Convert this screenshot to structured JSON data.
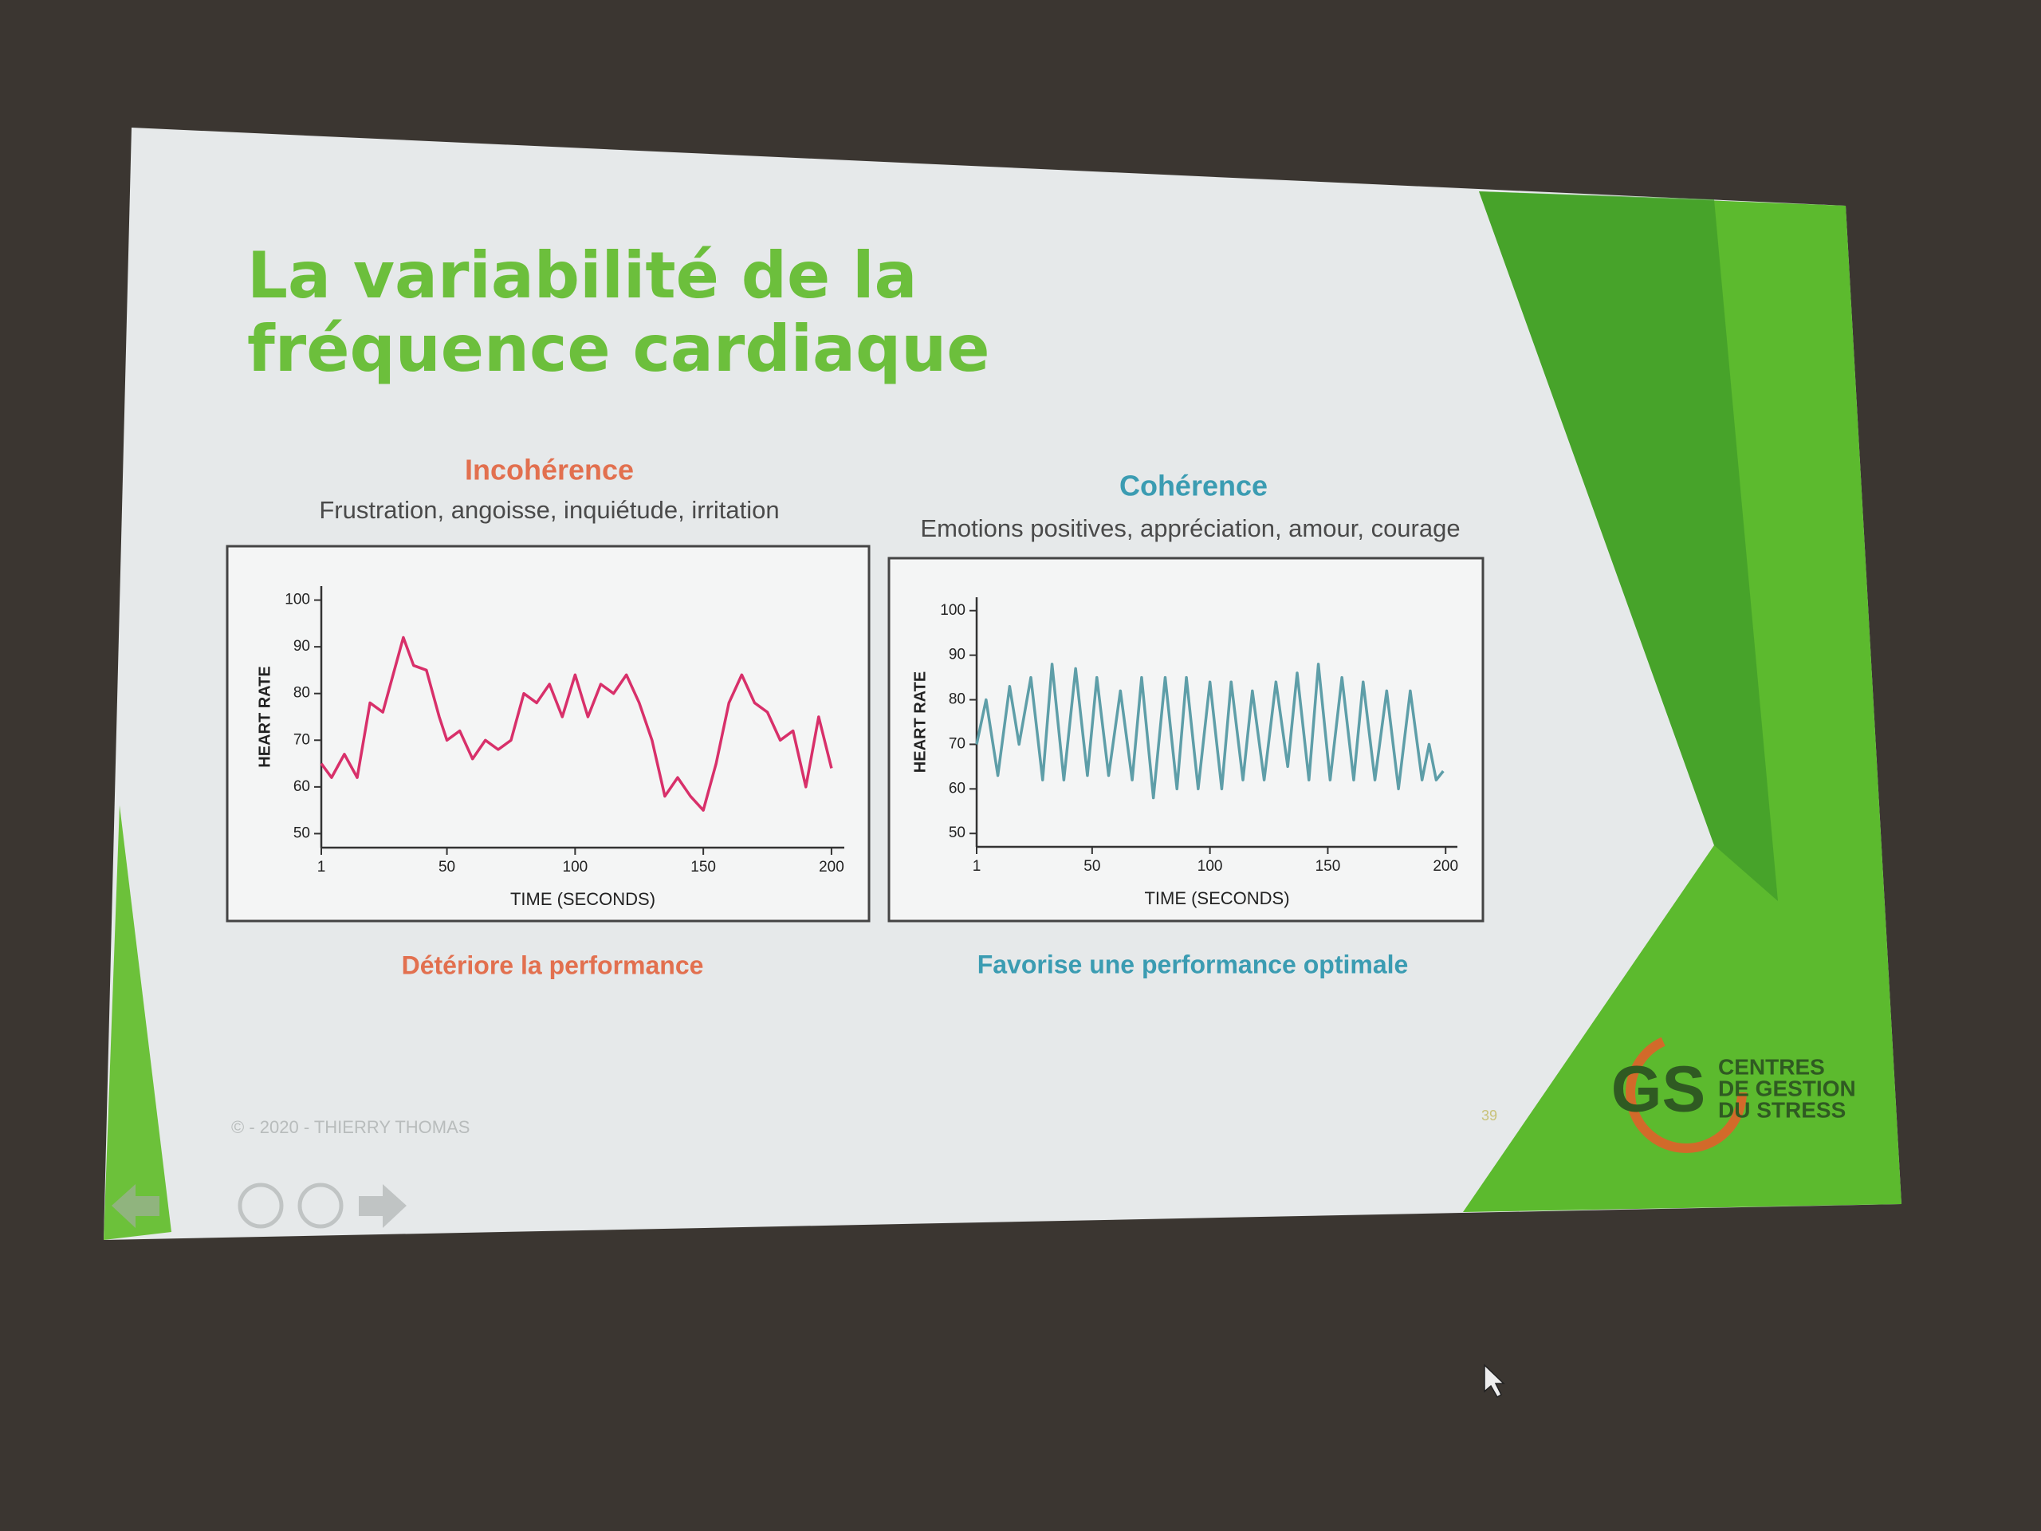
{
  "slide": {
    "title": "La variabilité de la fréquence cardiaque",
    "footer": "© - 2020 - THIERRY THOMAS",
    "page_number": "39",
    "logo": {
      "mark": "GS",
      "lines": [
        "CENTRES",
        "DE GESTION",
        "DU STRESS"
      ]
    }
  },
  "chart_data": [
    {
      "type": "line",
      "title": "Incohérence",
      "subtitle": "Frustration, angoisse, inquiétude, irritation",
      "caption": "Détériore la performance",
      "title_color": "#e2704f",
      "color": "#d8306a",
      "x_label": "TIME (SECONDS)",
      "y_label": "HEART RATE",
      "x": [
        1,
        5,
        10,
        15,
        20,
        25,
        28,
        33,
        37,
        42,
        47,
        50,
        55,
        60,
        65,
        70,
        75,
        80,
        85,
        90,
        95,
        100,
        105,
        110,
        115,
        120,
        125,
        130,
        135,
        140,
        145,
        150,
        155,
        160,
        165,
        170,
        175,
        180,
        185,
        190,
        195,
        200
      ],
      "values": [
        65,
        62,
        67,
        62,
        78,
        76,
        82,
        92,
        86,
        85,
        75,
        70,
        72,
        66,
        70,
        68,
        70,
        80,
        78,
        82,
        75,
        84,
        75,
        82,
        80,
        84,
        78,
        70,
        58,
        62,
        58,
        55,
        65,
        78,
        84,
        78,
        76,
        70,
        72,
        60,
        75,
        64
      ],
      "xlim": [
        1,
        205
      ],
      "ylim": [
        47,
        103
      ],
      "xticks": [
        1,
        50,
        100,
        150,
        200
      ],
      "yticks": [
        50,
        60,
        70,
        80,
        90,
        100
      ]
    },
    {
      "type": "line",
      "title": "Cohérence",
      "subtitle": "Emotions positives, appréciation, amour, courage",
      "caption": "Favorise une performance optimale",
      "title_color": "#3b9cb2",
      "color": "#5e9ea8",
      "x_label": "TIME (SECONDS)",
      "y_label": "HEART RATE",
      "x": [
        1,
        5,
        10,
        15,
        19,
        24,
        29,
        33,
        38,
        43,
        48,
        52,
        57,
        62,
        67,
        71,
        76,
        81,
        86,
        90,
        95,
        100,
        105,
        109,
        114,
        118,
        123,
        128,
        133,
        137,
        142,
        146,
        151,
        156,
        161,
        165,
        170,
        175,
        180,
        185,
        190,
        193,
        196,
        199
      ],
      "values": [
        70,
        80,
        63,
        83,
        70,
        85,
        62,
        88,
        62,
        87,
        63,
        85,
        63,
        82,
        62,
        85,
        58,
        85,
        60,
        85,
        60,
        84,
        60,
        84,
        62,
        82,
        62,
        84,
        65,
        86,
        62,
        88,
        62,
        85,
        62,
        84,
        62,
        82,
        60,
        82,
        62,
        70,
        62,
        64
      ],
      "xlim": [
        1,
        205
      ],
      "ylim": [
        47,
        103
      ],
      "xticks": [
        1,
        50,
        100,
        150,
        200
      ],
      "yticks": [
        50,
        60,
        70,
        80,
        90,
        100
      ]
    }
  ]
}
